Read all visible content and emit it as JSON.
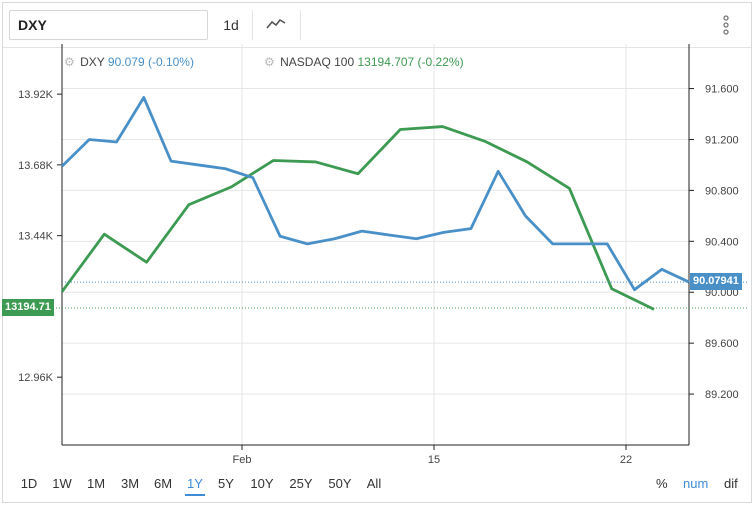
{
  "toolbar": {
    "symbol": "DXY",
    "interval": "1d",
    "chart_type_icon": "line-chart-icon",
    "menu_icon": "vertical-dots-icon"
  },
  "legend": [
    {
      "symbol": "DXY",
      "value": "90.079 (-0.10%)",
      "color": "#4a90c8",
      "icon": "gear-icon"
    },
    {
      "symbol": "NASDAQ 100",
      "value": "13194.707 (-0.22%)",
      "color": "#3d9a52",
      "icon": "gear-icon"
    }
  ],
  "badges": {
    "left": {
      "text": "13194.71",
      "color": "#3d9a52"
    },
    "right": {
      "text": "90.07941",
      "color": "#4a90c8"
    }
  },
  "range_buttons": [
    "1D",
    "1W",
    "1M",
    "3M",
    "6M",
    "1Y",
    "5Y",
    "10Y",
    "25Y",
    "50Y",
    "All"
  ],
  "active_range": "1Y",
  "modes": [
    "%",
    "num",
    "dif"
  ],
  "active_mode": "num",
  "chart_data": {
    "type": "line",
    "x_tick_labels": [
      "Feb",
      "15",
      "22"
    ],
    "left_axis": {
      "ticks": [
        "13.92K",
        "13.68K",
        "13.44K",
        "12.96K"
      ],
      "tick_values": [
        13920,
        13680,
        13440,
        12960
      ],
      "range": [
        12730,
        14090
      ]
    },
    "right_axis": {
      "ticks": [
        "91.600",
        "91.200",
        "90.800",
        "90.400",
        "90.000",
        "89.600",
        "89.200"
      ],
      "tick_values": [
        91.6,
        91.2,
        90.8,
        90.4,
        90.0,
        89.6,
        89.2
      ],
      "range": [
        88.8,
        91.95
      ]
    },
    "series": [
      {
        "name": "DXY",
        "axis": "right",
        "color": "#4a90c8",
        "values": [
          90.99,
          91.2,
          91.18,
          91.53,
          91.03,
          91.0,
          90.97,
          90.9,
          90.44,
          90.38,
          90.42,
          90.48,
          90.45,
          90.42,
          90.47,
          90.5,
          90.95,
          90.6,
          90.38,
          90.38,
          90.38,
          90.02,
          90.18,
          90.08
        ],
        "last": 90.07941
      },
      {
        "name": "NASDAQ 100",
        "axis": "left",
        "color": "#3d9a52",
        "values": [
          13250,
          13445,
          13350,
          13545,
          13605,
          13695,
          13690,
          13650,
          13800,
          13810,
          13760,
          13690,
          13600,
          13260,
          13190
        ],
        "last": 13194.71
      }
    ],
    "grid": true,
    "legend_position": "top-left"
  }
}
